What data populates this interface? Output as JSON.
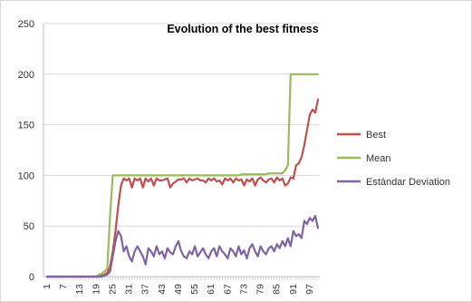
{
  "chart_data": {
    "type": "line",
    "title": "Evolution of the best fitness",
    "xlabel": "",
    "ylabel": "",
    "ylim": [
      0,
      250
    ],
    "y_ticks": [
      0,
      50,
      100,
      150,
      200,
      250
    ],
    "x_tick_labels": [
      "1",
      "7",
      "13",
      "19",
      "25",
      "31",
      "37",
      "43",
      "49",
      "55",
      "61",
      "67",
      "73",
      "79",
      "85",
      "91",
      "97"
    ],
    "grid": "horizontal",
    "legend_position": "right",
    "x": [
      1,
      2,
      3,
      4,
      5,
      6,
      7,
      8,
      9,
      10,
      11,
      12,
      13,
      14,
      15,
      16,
      17,
      18,
      19,
      20,
      21,
      22,
      23,
      24,
      25,
      26,
      27,
      28,
      29,
      30,
      31,
      32,
      33,
      34,
      35,
      36,
      37,
      38,
      39,
      40,
      41,
      42,
      43,
      44,
      45,
      46,
      47,
      48,
      49,
      50,
      51,
      52,
      53,
      54,
      55,
      56,
      57,
      58,
      59,
      60,
      61,
      62,
      63,
      64,
      65,
      66,
      67,
      68,
      69,
      70,
      71,
      72,
      73,
      74,
      75,
      76,
      77,
      78,
      79,
      80,
      81,
      82,
      83,
      84,
      85,
      86,
      87,
      88,
      89,
      90,
      91,
      92,
      93,
      94,
      95,
      96,
      97,
      98,
      99,
      100
    ],
    "series": [
      {
        "name": "Best",
        "color": "#c0504d",
        "values": [
          0,
          0,
          0,
          0,
          0,
          0,
          0,
          0,
          0,
          0,
          0,
          0,
          0,
          0,
          0,
          0,
          0,
          0,
          0,
          0,
          1,
          2,
          4,
          10,
          25,
          45,
          70,
          90,
          97,
          95,
          97,
          88,
          97,
          95,
          97,
          88,
          97,
          94,
          97,
          90,
          97,
          95,
          95,
          96,
          97,
          88,
          92,
          94,
          96,
          96,
          97,
          93,
          97,
          95,
          96,
          97,
          95,
          95,
          93,
          97,
          95,
          97,
          94,
          95,
          91,
          97,
          95,
          97,
          93,
          97,
          95,
          96,
          90,
          96,
          94,
          97,
          90,
          96,
          98,
          95,
          93,
          96,
          97,
          93,
          98,
          95,
          97,
          90,
          92,
          98,
          97,
          110,
          112,
          118,
          130,
          145,
          160,
          165,
          162,
          175
        ]
      },
      {
        "name": "Mean",
        "color": "#9bbb59",
        "values": [
          0,
          0,
          0,
          0,
          0,
          0,
          0,
          0,
          0,
          0,
          0,
          0,
          0,
          0,
          0,
          0,
          0,
          0,
          0,
          2,
          3,
          5,
          8,
          60,
          100,
          100,
          100,
          100,
          100,
          100,
          100,
          100,
          100,
          100,
          100,
          100,
          100,
          100,
          100,
          100,
          100,
          100,
          100,
          100,
          100,
          100,
          100,
          100,
          100,
          100,
          100,
          100,
          100,
          100,
          100,
          100,
          100,
          100,
          100,
          100,
          100,
          100,
          100,
          100,
          100,
          100,
          100,
          100,
          100,
          100,
          100,
          101,
          101,
          101,
          101,
          101,
          101,
          101,
          101,
          101,
          101,
          102,
          102,
          102,
          102,
          102,
          102,
          105,
          110,
          200,
          200,
          200,
          200,
          200,
          200,
          200,
          200,
          200,
          200,
          200
        ]
      },
      {
        "name": "Estándar Deviation",
        "color": "#8064a2",
        "values": [
          0,
          0,
          0,
          0,
          0,
          0,
          0,
          0,
          0,
          0,
          0,
          0,
          0,
          0,
          0,
          0,
          0,
          0,
          0,
          0,
          0,
          1,
          2,
          5,
          20,
          35,
          45,
          40,
          25,
          30,
          20,
          15,
          25,
          30,
          25,
          20,
          12,
          28,
          25,
          20,
          30,
          22,
          25,
          18,
          28,
          24,
          22,
          30,
          35,
          25,
          20,
          18,
          25,
          22,
          30,
          20,
          24,
          28,
          22,
          18,
          25,
          28,
          20,
          30,
          25,
          22,
          18,
          28,
          25,
          20,
          30,
          22,
          26,
          18,
          28,
          32,
          25,
          20,
          30,
          25,
          22,
          28,
          30,
          25,
          32,
          28,
          35,
          30,
          38,
          30,
          45,
          40,
          42,
          38,
          55,
          52,
          58,
          55,
          60,
          48
        ]
      }
    ]
  }
}
